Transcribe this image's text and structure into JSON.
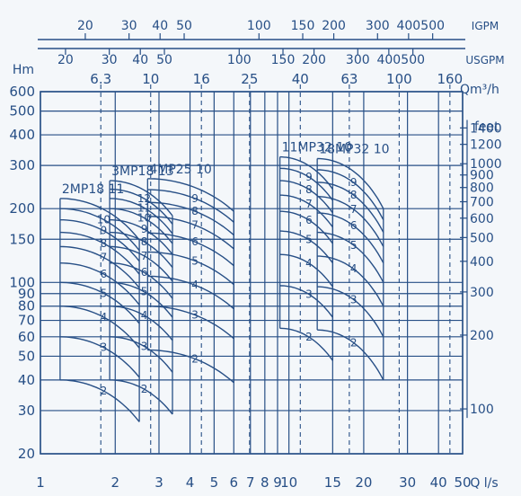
{
  "chart_data": {
    "type": "line",
    "title": "",
    "x_axis": {
      "label": "Q l/s",
      "scale": "log",
      "range": [
        1,
        50
      ],
      "ticks": [
        1,
        2,
        3,
        4,
        5,
        6,
        7,
        8,
        9,
        10,
        15,
        20,
        30,
        40,
        50
      ],
      "tick_labels": [
        "1",
        "2",
        "3",
        "4",
        "5",
        "6",
        "7",
        "8",
        "9",
        "10",
        "15",
        "20",
        "30",
        "40",
        "50"
      ]
    },
    "y_axis": {
      "label": "Hm",
      "scale": "log",
      "range": [
        20,
        600
      ],
      "ticks": [
        20,
        30,
        40,
        50,
        60,
        70,
        80,
        90,
        100,
        150,
        200,
        300,
        400,
        500,
        600
      ],
      "tick_labels": [
        "20",
        "30",
        "40",
        "50",
        "60",
        "70",
        "80",
        "90",
        "100",
        "150",
        "200",
        "300",
        "400",
        "500",
        "600"
      ]
    },
    "right_axis": {
      "label": "feet",
      "ticks": [
        100,
        200,
        300,
        400,
        500,
        600,
        700,
        800,
        900,
        1000,
        1200,
        1400
      ],
      "tick_labels": [
        "100",
        "200",
        "300",
        "400",
        "500",
        "600",
        "700",
        "800",
        "900",
        "1000",
        "1200",
        "1400"
      ]
    },
    "top_axes": [
      {
        "label": "IGPM",
        "values": [
          20,
          30,
          40,
          50,
          100,
          150,
          200,
          300,
          400,
          500
        ],
        "tick_labels": [
          "20",
          "30",
          "40",
          "50",
          "100",
          "150",
          "200",
          "300",
          "400",
          "500"
        ]
      },
      {
        "label": "USGPM",
        "values": [
          20,
          30,
          40,
          50,
          100,
          150,
          200,
          300,
          400,
          500
        ],
        "tick_labels": [
          "20",
          "30",
          "40",
          "50",
          "100",
          "150",
          "200",
          "300",
          "400",
          "500"
        ]
      }
    ],
    "nominal_flow": {
      "label": "Qm³/h",
      "values": [
        6.3,
        10,
        16,
        25,
        40,
        63,
        100,
        160
      ],
      "labels": [
        "6.3",
        "10",
        "16",
        "25",
        "40",
        "63",
        "100",
        "160"
      ]
    },
    "series": [
      {
        "name": "2MP18",
        "stage_label": "11",
        "q_range": [
          1.2,
          2.5
        ],
        "stages": [
          "2",
          "3",
          "4",
          "5",
          "6",
          "7",
          "8",
          "9",
          "10",
          "11"
        ],
        "stage_labels": [
          "2",
          "3",
          "4",
          "5",
          "6",
          "7",
          "8",
          "9",
          "10",
          ""
        ],
        "h_start": [
          40,
          60,
          80,
          100,
          120,
          140,
          160,
          180,
          200,
          220
        ],
        "h_end": [
          27,
          41,
          54,
          68,
          81,
          95,
          108,
          122,
          135,
          149
        ]
      },
      {
        "name": "3MP18",
        "stage_label": "13",
        "q_range": [
          1.9,
          3.4
        ],
        "stages": [
          "2",
          "3",
          "4",
          "5",
          "6",
          "7",
          "8",
          "9",
          "10",
          "11",
          "12",
          "13"
        ],
        "stage_labels": [
          "2",
          "3",
          "4",
          "5",
          "6",
          "7",
          "8",
          "9",
          "10",
          "11",
          "12",
          ""
        ],
        "h_start": [
          40,
          60,
          80,
          100,
          120,
          140,
          160,
          180,
          200,
          220,
          240,
          260
        ],
        "h_end": [
          29,
          43,
          58,
          72,
          86,
          101,
          115,
          130,
          144,
          158,
          173,
          187
        ]
      },
      {
        "name": "4MP25",
        "stage_label": "10",
        "q_range": [
          2.7,
          6.0
        ],
        "stages": [
          "2",
          "3",
          "4",
          "5",
          "6",
          "7",
          "8",
          "9",
          "10"
        ],
        "stage_labels": [
          "2",
          "3",
          "4",
          "5",
          "6",
          "7",
          "8",
          "9",
          ""
        ],
        "h_start": [
          53,
          80,
          106,
          133,
          159,
          186,
          212,
          239,
          265
        ],
        "h_end": [
          39,
          59,
          78,
          98,
          117,
          137,
          156,
          176,
          195
        ]
      },
      {
        "name": "11MP32",
        "stage_label": "10",
        "q_range": [
          9.2,
          15.0
        ],
        "stages": [
          "2",
          "3",
          "4",
          "5",
          "6",
          "7",
          "8",
          "9",
          "10"
        ],
        "stage_labels": [
          "2",
          "3",
          "4",
          "5",
          "6",
          "7",
          "8",
          "9",
          ""
        ],
        "h_start": [
          65,
          97,
          130,
          162,
          195,
          227,
          260,
          292,
          325
        ],
        "h_end": [
          48,
          72,
          96,
          120,
          144,
          168,
          192,
          216,
          240
        ]
      },
      {
        "name": "18MP32",
        "stage_label": "10",
        "q_range": [
          13.0,
          24.0
        ],
        "stages": [
          "2",
          "3",
          "4",
          "5",
          "6",
          "7",
          "8",
          "9",
          "10"
        ],
        "stage_labels": [
          "2",
          "3",
          "4",
          "5",
          "6",
          "7",
          "8",
          "9",
          ""
        ],
        "h_start": [
          64,
          96,
          128,
          160,
          192,
          224,
          256,
          288,
          320
        ],
        "h_end": [
          40,
          60,
          80,
          100,
          120,
          140,
          160,
          180,
          200
        ]
      }
    ],
    "colors": {
      "ink": "#274f86",
      "paper": "#f4f7fa"
    }
  }
}
